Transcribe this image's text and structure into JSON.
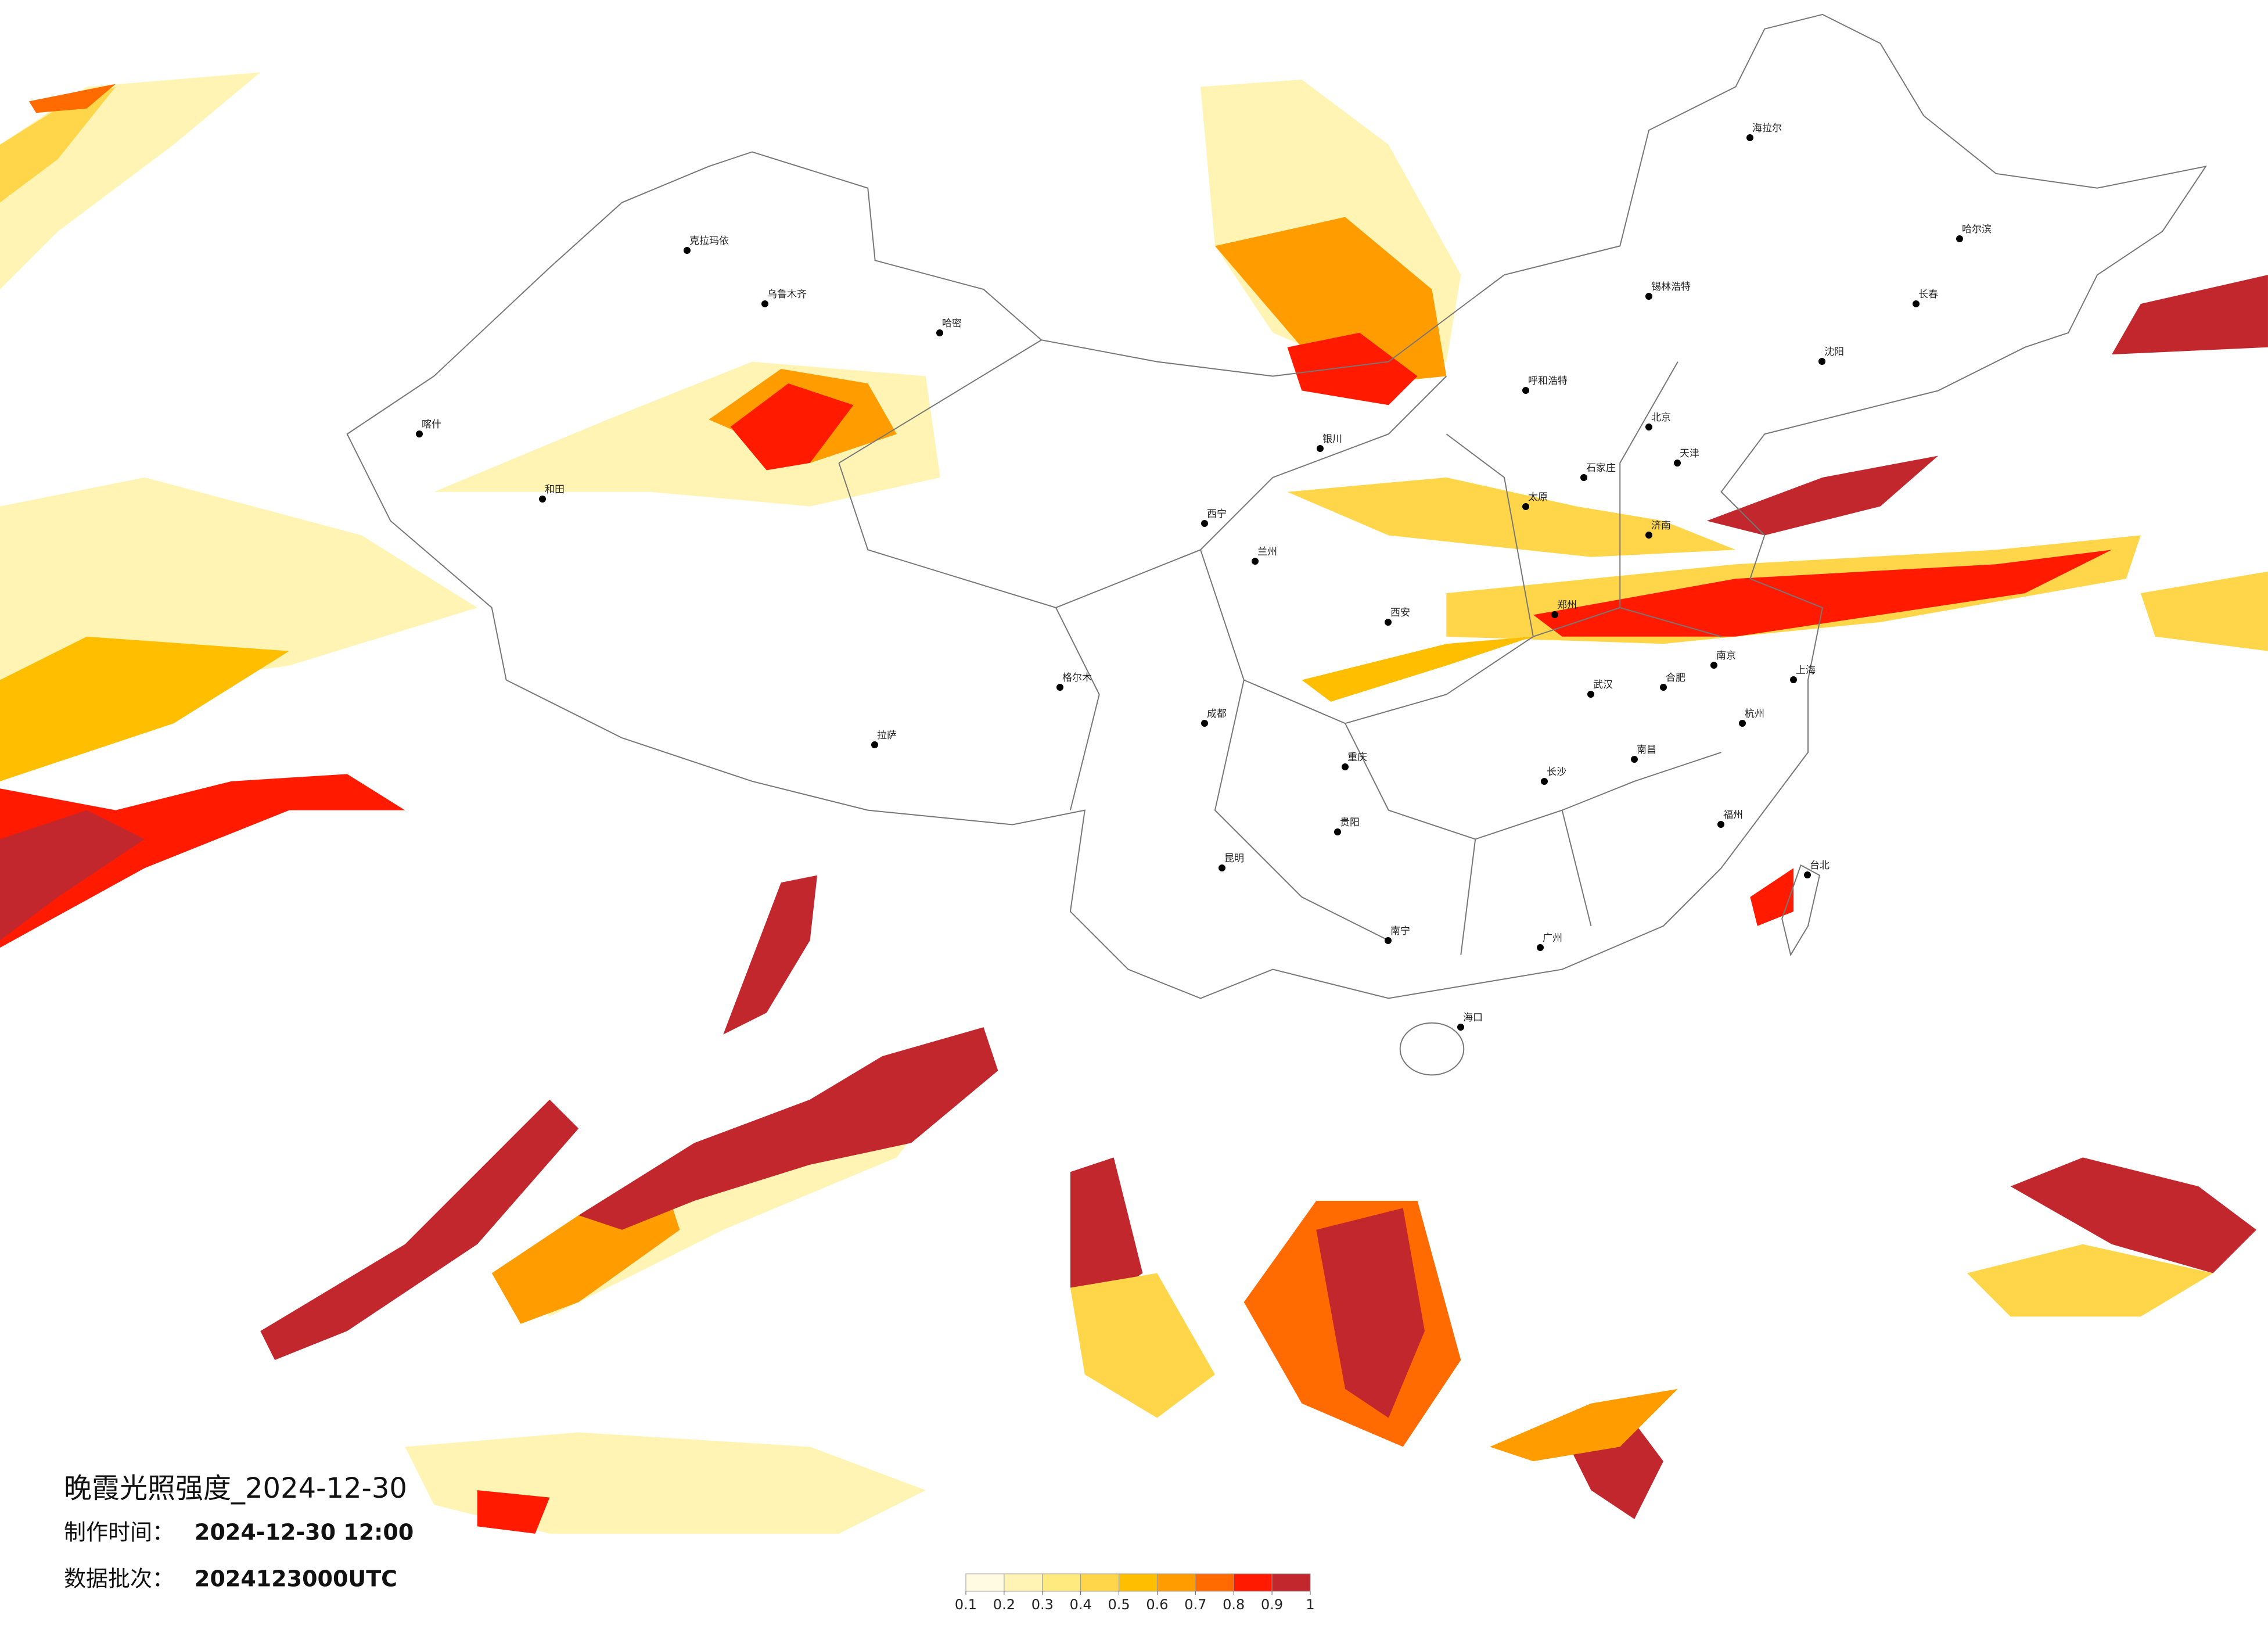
{
  "header": {
    "title": "晚霞光照强度_2024-12-30",
    "made_label": "制作时间：",
    "made_value": "2024-12-30 12:00",
    "batch_label": "数据批次：",
    "batch_value": "2024123000UTC"
  },
  "legend": {
    "ticks": [
      0.1,
      0.2,
      0.3,
      0.4,
      0.5,
      0.6,
      0.7,
      0.8,
      0.9,
      1
    ],
    "colors": [
      "#fffbe3",
      "#fff4b4",
      "#ffea80",
      "#ffd64a",
      "#ffbe00",
      "#ff9c00",
      "#ff6b00",
      "#ff1a00",
      "#c1272d"
    ]
  },
  "cities": [
    "乌鲁木齐",
    "克拉玛依",
    "喀什",
    "拉萨",
    "西宁",
    "兰州",
    "银川",
    "呼和浩特",
    "北京",
    "天津",
    "石家庄",
    "太原",
    "西安",
    "成都",
    "重庆",
    "昆明",
    "贵阳",
    "南宁",
    "广州",
    "海口",
    "长沙",
    "武汉",
    "南昌",
    "福州",
    "杭州",
    "上海",
    "南京",
    "合肥",
    "济南",
    "郑州",
    "沈阳",
    "长春",
    "哈尔滨",
    "台北",
    "哈密",
    "格尔木",
    "和田",
    "海拉尔",
    "锡林浩特"
  ]
}
